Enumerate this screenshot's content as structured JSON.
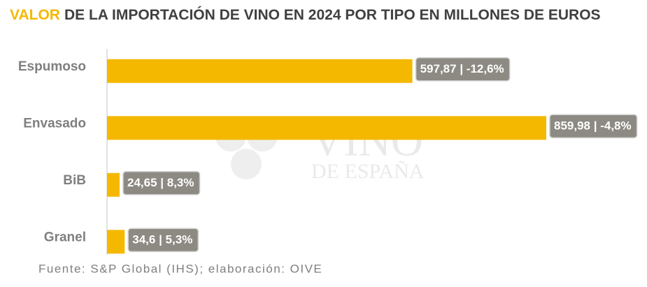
{
  "chart_data": {
    "type": "bar",
    "orientation": "horizontal",
    "title_highlight": "VALOR",
    "title": "DE LA IMPORTACIÓN DE VINO EN 2024 POR TIPO EN MILLONES DE EUROS",
    "categories": [
      "Espumoso",
      "Envasado",
      "BiB",
      "Granel"
    ],
    "values": [
      597.87,
      859.98,
      24.65,
      34.6
    ],
    "value_labels": [
      "597,87 | -12,6%",
      "859,98 | -4,8%",
      "24,65 | 8,3%",
      "34,6 | 5,3%"
    ],
    "color": "#f5b800",
    "label_color": "#8c8a82",
    "watermark": [
      "VINO",
      "DE ESPAÑA"
    ],
    "source": "Fuente: S&P Global (IHS); elaboración: OIVE"
  }
}
